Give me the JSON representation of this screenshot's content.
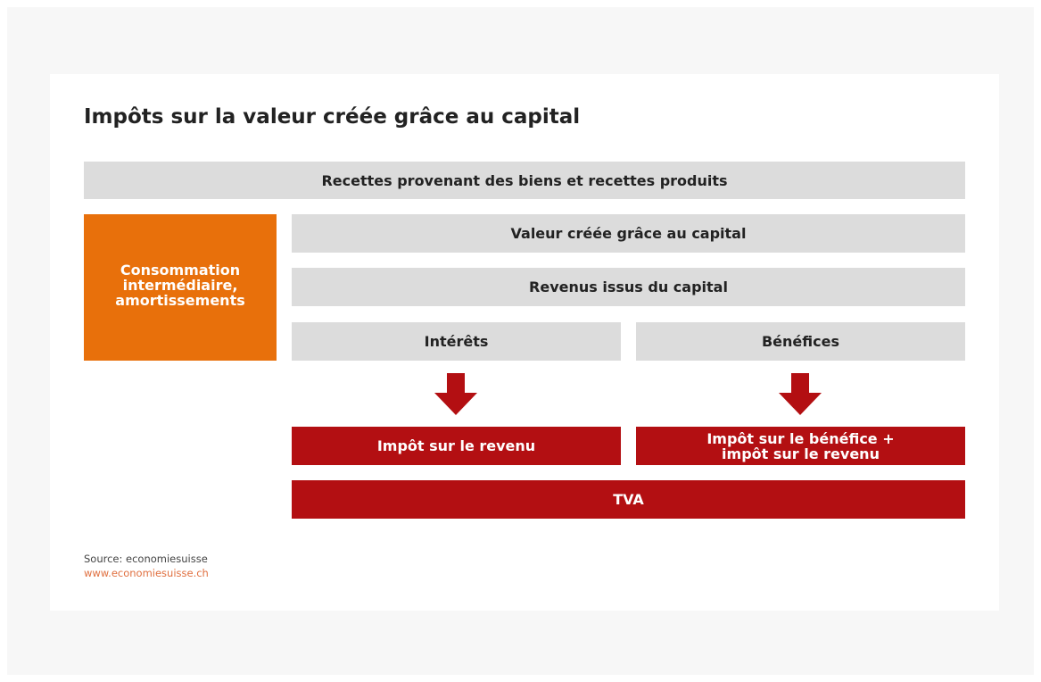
{
  "title": "Impôts sur la valeur créée grâce au capital",
  "boxes": {
    "revenue": "Recettes provenant des biens et recettes produits",
    "intermediate": [
      "Consommation",
      "intermédiaire,",
      "amortissements"
    ],
    "value_created": "Valeur créée grâce au capital",
    "capital_income": "Revenus issus du capital",
    "interest": "Intérêts",
    "profits": "Bénéfices",
    "income_tax": "Impôt sur le revenu",
    "profit_tax": [
      "Impôt sur le bénéfice +",
      "impôt sur le revenu"
    ],
    "vat": "TVA"
  },
  "source": {
    "text": "Source: economiesuisse",
    "url": "www.economiesuisse.ch"
  }
}
